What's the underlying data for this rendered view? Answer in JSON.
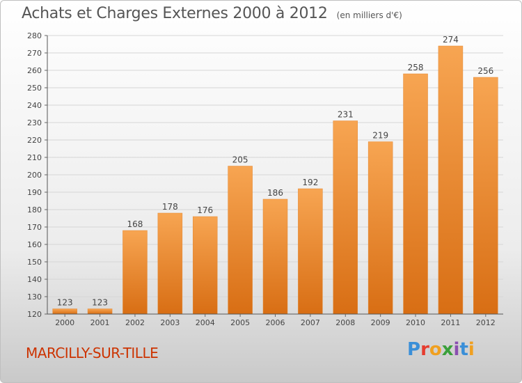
{
  "header": {
    "title": "Achats et Charges Externes 2000 à 2012",
    "subtitle": "(en milliers d'€)"
  },
  "footer": {
    "commune": "MARCILLY-SUR-TILLE",
    "logo_letters": [
      "P",
      "r",
      "o",
      "x",
      "i",
      "t",
      "i"
    ],
    "logo_colors": [
      "#3a8fd8",
      "#e63c2f",
      "#f0a020",
      "#3aa03a",
      "#8a4fb0",
      "#3a8fd8",
      "#f0a020"
    ]
  },
  "chart_data": {
    "type": "bar",
    "title": "Achats et Charges Externes 2000 à 2012",
    "subtitle": "(en milliers d'€)",
    "categories": [
      "2000",
      "2001",
      "2002",
      "2003",
      "2004",
      "2005",
      "2006",
      "2007",
      "2008",
      "2009",
      "2010",
      "2011",
      "2012"
    ],
    "values": [
      123,
      123,
      168,
      178,
      176,
      205,
      186,
      192,
      231,
      219,
      258,
      274,
      256
    ],
    "ylim": [
      120,
      280
    ],
    "yticks": [
      120,
      130,
      140,
      150,
      160,
      170,
      180,
      190,
      200,
      210,
      220,
      230,
      240,
      250,
      260,
      270,
      280
    ],
    "grid": true,
    "bar_color": "#f2913a"
  }
}
